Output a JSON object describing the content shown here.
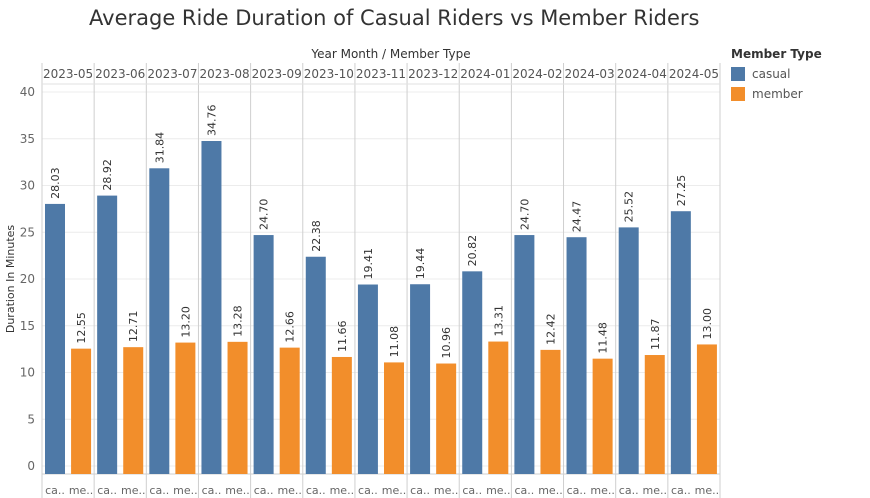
{
  "title": "Average Ride Duration of Casual Riders vs Member Riders",
  "colors": {
    "casual": "#4e79a7",
    "member": "#f28e2b"
  },
  "legend": {
    "title": "Member Type",
    "items": [
      {
        "label": "casual",
        "color": "#4e79a7"
      },
      {
        "label": "member",
        "color": "#f28e2b"
      }
    ]
  },
  "chart_data": {
    "type": "bar",
    "title": "Average Ride Duration of Casual Riders vs Member Riders",
    "header_label": "Year Month  /  Member Type",
    "ylabel": "Duration In Minutes",
    "ylim": [
      0,
      40
    ],
    "yticks": [
      0,
      5,
      10,
      15,
      20,
      25,
      30,
      35,
      40
    ],
    "grid": true,
    "legend_position": "right",
    "categories": [
      "2023-05",
      "2023-06",
      "2023-07",
      "2023-08",
      "2023-09",
      "2023-10",
      "2023-11",
      "2023-12",
      "2024-01",
      "2024-02",
      "2024-03",
      "2024-04",
      "2024-05"
    ],
    "subcategory_labels": [
      "ca..",
      "me.."
    ],
    "series": [
      {
        "name": "casual",
        "values": [
          28.03,
          28.92,
          31.84,
          34.76,
          24.7,
          22.38,
          19.41,
          19.44,
          20.82,
          24.7,
          24.47,
          25.52,
          27.25
        ]
      },
      {
        "name": "member",
        "values": [
          12.55,
          12.71,
          13.2,
          13.28,
          12.66,
          11.66,
          11.08,
          10.96,
          13.31,
          12.42,
          11.48,
          11.87,
          13.0
        ]
      }
    ]
  }
}
